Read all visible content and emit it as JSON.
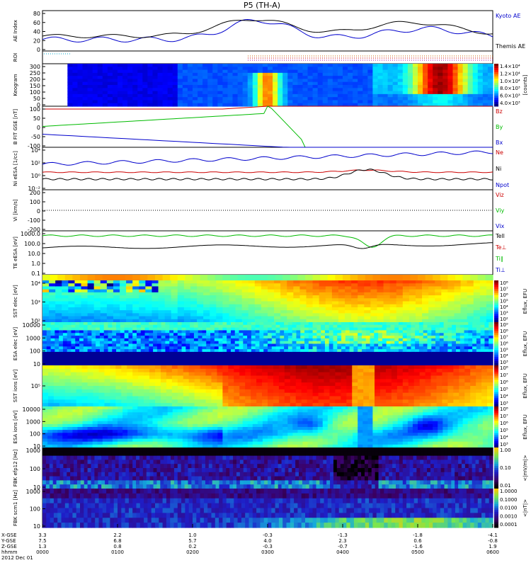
{
  "title": "P5 (TH-A)",
  "footer": {
    "date": "2012 Dec 01",
    "row_labels": [
      "X-GSE",
      "Y-GSE",
      "Z-GSE",
      "hhmm"
    ],
    "ticks": [
      {
        "x": "3.3",
        "y": "7.5",
        "z": "1.3",
        "t": "0000"
      },
      {
        "x": "2.2",
        "y": "6.8",
        "z": "0.8",
        "t": "0100"
      },
      {
        "x": "1.0",
        "y": "5.7",
        "z": "0.2",
        "t": "0200"
      },
      {
        "x": "-0.3",
        "y": "4.0",
        "z": "-0.3",
        "t": "0300"
      },
      {
        "x": "-1.3",
        "y": "2.3",
        "z": "-0.7",
        "t": "0400"
      },
      {
        "x": "-1.8",
        "y": "0.6",
        "z": "-1.6",
        "t": "0500"
      },
      {
        "x": "-4.1",
        "y": "-0.8",
        "z": "1.9",
        "t": "0600"
      }
    ]
  },
  "chart_data": [
    {
      "type": "line",
      "ylabel": "AE Index",
      "yticks": [
        "80",
        "60",
        "40",
        "20",
        "0"
      ],
      "series": [
        {
          "name": "Kyoto AE",
          "color": "#0000cc"
        },
        {
          "name": "Themis AE",
          "color": "#000000"
        }
      ]
    },
    {
      "type": "line",
      "ylabel": "ROI",
      "yticks": []
    },
    {
      "type": "heatmap",
      "ylabel": "Keogram",
      "yticks": [
        "300",
        "250",
        "200",
        "150",
        "100",
        "50",
        "0"
      ],
      "colorbar": {
        "label": "[counts]",
        "ticks": [
          "1.4×10⁴",
          "1.2×10⁴",
          "1.0×10⁴",
          "8.0×10³",
          "6.0×10³",
          "4.0×10³"
        ]
      }
    },
    {
      "type": "line",
      "ylabel": "B FIT GSE [nT]",
      "yticks": [
        "100",
        "50",
        "0",
        "-50",
        "-100"
      ],
      "series": [
        {
          "name": "Bz",
          "color": "#cc0000"
        },
        {
          "name": "By",
          "color": "#00bb00"
        },
        {
          "name": "Bx",
          "color": "#0000cc"
        }
      ]
    },
    {
      "type": "line",
      "ylabel": "Ni eESA [1/cc]",
      "yticks": [
        "10⁴",
        "10²",
        "10⁰",
        "10⁻²"
      ],
      "series": [
        {
          "name": "Ne",
          "color": "#cc0000"
        },
        {
          "name": "Ni",
          "color": "#000000"
        },
        {
          "name": "Npot",
          "color": "#0000cc"
        }
      ]
    },
    {
      "type": "line",
      "ylabel": "Vi [km/s]",
      "yticks": [
        "200",
        "100",
        "0",
        "-100",
        "-200"
      ],
      "series": [
        {
          "name": "Viz",
          "color": "#cc0000"
        },
        {
          "name": "Viy",
          "color": "#00bb00"
        },
        {
          "name": "Vix",
          "color": "#0000cc"
        }
      ]
    },
    {
      "type": "line",
      "ylabel": "TE eESA [eV]",
      "yticks": [
        "1000.0",
        "100.0",
        "10.0",
        "1.0",
        "0.1"
      ],
      "series": [
        {
          "name": "Tell",
          "color": "#000000"
        },
        {
          "name": "Te⊥",
          "color": "#cc0000"
        },
        {
          "name": "Ti∥",
          "color": "#00bb00"
        },
        {
          "name": "Ti⊥",
          "color": "#0000cc"
        }
      ]
    },
    {
      "type": "heatmap",
      "ylabel": "SST elec [eV]",
      "yticks": [
        "10⁴",
        "10³",
        "10²"
      ],
      "colorbar": {
        "label": "Eflux, EFU",
        "ticks": [
          "10⁸",
          "10⁷",
          "10⁶",
          "10⁵",
          "10⁴",
          "10³",
          "10²"
        ]
      }
    },
    {
      "type": "heatmap",
      "ylabel": "ESA elec [eV]",
      "yticks": [
        "10000",
        "1000",
        "100",
        "10"
      ],
      "colorbar": {
        "label": "Eflux, EFU",
        "ticks": [
          "10⁹",
          "10⁸",
          "10⁷",
          "10⁶",
          "10⁵",
          "10⁴",
          "10³"
        ]
      }
    },
    {
      "type": "heatmap",
      "ylabel": "SST ions [eV]",
      "yticks": [
        "10⁵"
      ],
      "colorbar": {
        "label": "Eflux, EFU",
        "ticks": [
          "10⁸",
          "10⁷",
          "10⁶",
          "10⁵",
          "10⁴",
          "10³"
        ]
      }
    },
    {
      "type": "heatmap",
      "ylabel": "ESA ions [eV]",
      "yticks": [
        "10000",
        "1000",
        "100",
        "10"
      ],
      "colorbar": {
        "label": "Eflux, EFU",
        "ticks": [
          "10⁸",
          "10⁷",
          "10⁶",
          "10⁵",
          "10⁴",
          "10³"
        ]
      }
    },
    {
      "type": "heatmap",
      "ylabel": "FBK efp12 [Hz]",
      "yticks": [
        "1000",
        "100",
        "10"
      ],
      "colorbar": {
        "label": "<|mV/m|>",
        "ticks": [
          "1.00",
          "0.10",
          "0.01"
        ]
      }
    },
    {
      "type": "heatmap",
      "ylabel": "FBK scm1 [Hz]",
      "yticks": [
        "1000",
        "100",
        "10"
      ],
      "colorbar": {
        "label": "<|nT|>",
        "ticks": [
          "1.0000",
          "0.1000",
          "0.0100",
          "0.0010",
          "0.0001"
        ]
      }
    }
  ]
}
